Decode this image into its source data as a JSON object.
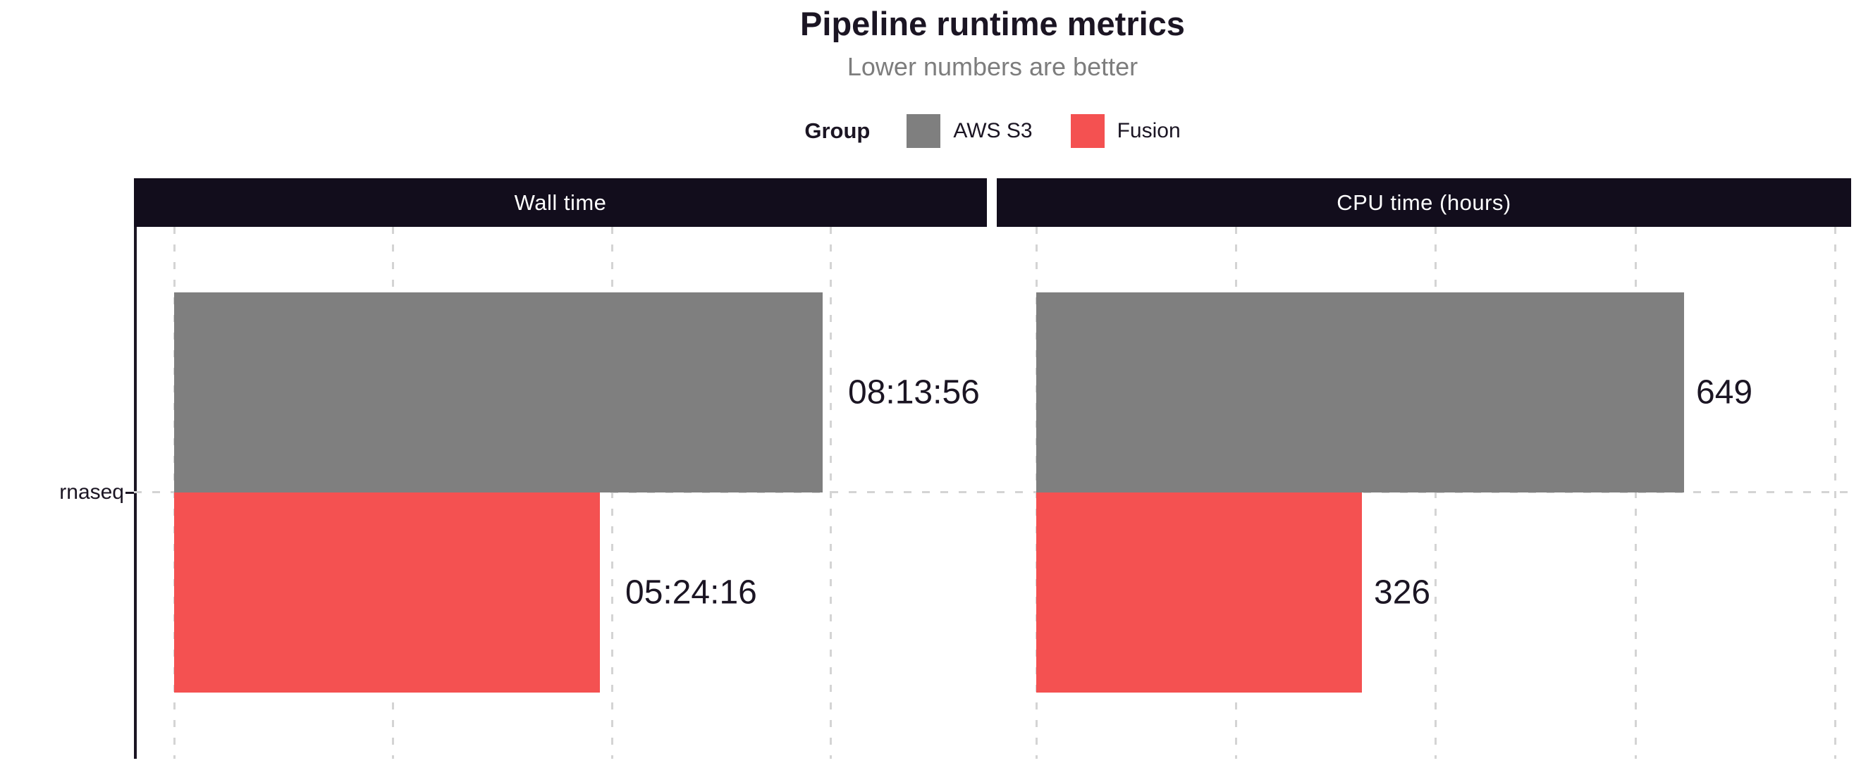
{
  "title": "Pipeline runtime metrics",
  "subtitle": "Lower numbers are better",
  "legend": {
    "title": "Group",
    "items": [
      {
        "label": "AWS S3",
        "color": "#7f7f7f"
      },
      {
        "label": "Fusion",
        "color": "#f45151"
      }
    ]
  },
  "y_axis": {
    "category": "rnaseq"
  },
  "colors": {
    "text_dark": "#1b1523",
    "subtitle": "#7d7d7d",
    "strip_bg": "#120d1c",
    "grid": "#d4d4d4"
  },
  "chart_data": {
    "type": "bar",
    "orientation": "horizontal",
    "title": "Pipeline runtime metrics",
    "subtitle": "Lower numbers are better",
    "legend_position": "top",
    "grid": "dashed vertical gridlines + dashed category line",
    "categories": [
      "rnaseq"
    ],
    "facets": [
      {
        "title": "Wall time",
        "unit": "seconds",
        "gridline_interval": 10000,
        "xlim": [
          0,
          37000
        ],
        "series": [
          {
            "name": "AWS S3",
            "value": 29636,
            "display": "08:13:56"
          },
          {
            "name": "Fusion",
            "value": 19456,
            "display": "05:24:16"
          }
        ]
      },
      {
        "title": "CPU time (hours)",
        "unit": "hours",
        "gridline_interval": 200,
        "xlim": [
          0,
          820
        ],
        "series": [
          {
            "name": "AWS S3",
            "value": 649,
            "display": "649"
          },
          {
            "name": "Fusion",
            "value": 326,
            "display": "326"
          }
        ]
      }
    ]
  }
}
